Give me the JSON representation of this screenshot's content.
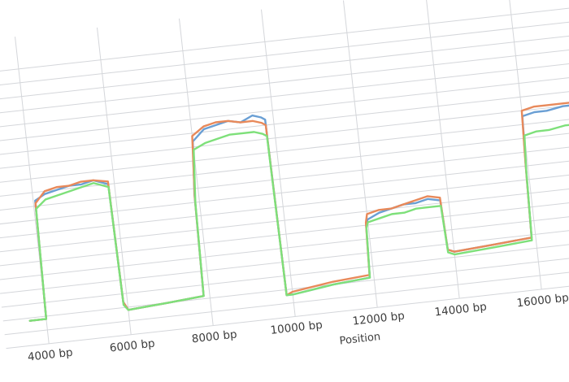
{
  "chart_data": {
    "type": "line",
    "xlabel": "Position",
    "x_ticks": [
      4000,
      6000,
      8000,
      10000,
      12000,
      14000,
      16000
    ],
    "x_tick_labels": [
      "4000 bp",
      "6000 bp",
      "8000 bp",
      "10000 bp",
      "12000 bp",
      "14000 bp",
      "16000 bp"
    ],
    "x_unit": "bp",
    "xlim": [
      3600,
      17200
    ],
    "ylim": [
      0,
      100
    ],
    "grid": true,
    "legend": "none",
    "series": [
      {
        "color": "#6a9fd4",
        "x": [
          3600,
          4000,
          4050,
          4300,
          4600,
          4900,
          5200,
          5500,
          5850,
          5900,
          6000,
          7000,
          7850,
          7900,
          8000,
          8300,
          8600,
          8900,
          9200,
          9500,
          9700,
          9800,
          9850,
          10000,
          11000,
          11900,
          11950,
          12000,
          12300,
          12600,
          12900,
          13200,
          13500,
          13800,
          13850,
          14000,
          15000,
          15900,
          15950,
          16000,
          16300,
          16600,
          17000,
          17200
        ],
        "y": [
          9,
          9,
          52,
          54,
          55,
          56,
          56,
          57,
          55,
          12,
          9,
          10,
          11,
          48,
          67,
          71,
          72,
          73,
          72,
          74,
          73,
          72,
          8,
          8,
          10,
          11,
          30,
          32,
          34,
          35,
          36,
          36,
          37,
          36,
          18,
          17,
          18,
          19,
          45,
          63,
          64,
          64,
          65,
          65
        ]
      },
      {
        "color": "#e8895a",
        "x": [
          3600,
          4000,
          4050,
          4300,
          4600,
          4900,
          5200,
          5500,
          5850,
          5900,
          6000,
          7000,
          7850,
          7900,
          8000,
          8300,
          8600,
          8900,
          9200,
          9500,
          9700,
          9800,
          9850,
          10000,
          11000,
          11900,
          11950,
          12000,
          12300,
          12600,
          12900,
          13200,
          13500,
          13800,
          13850,
          14000,
          15000,
          15900,
          15950,
          16000,
          16300,
          16600,
          17000,
          17200
        ],
        "y": [
          9,
          9,
          51,
          55,
          56,
          56,
          57,
          57,
          56,
          12,
          9,
          10,
          11,
          47,
          69,
          72,
          73,
          73,
          72,
          72,
          71,
          70,
          8,
          9,
          11,
          12,
          31,
          34,
          35,
          35,
          36,
          37,
          38,
          37,
          18,
          17,
          18,
          19,
          46,
          65,
          66,
          66,
          66,
          66
        ]
      },
      {
        "color": "#7ee07a",
        "x": [
          3600,
          4000,
          4050,
          4300,
          4600,
          4900,
          5200,
          5500,
          5850,
          5900,
          6000,
          7000,
          7850,
          7900,
          8000,
          8300,
          8600,
          8900,
          9200,
          9500,
          9700,
          9800,
          9850,
          10000,
          11000,
          11900,
          11950,
          12000,
          12300,
          12600,
          12900,
          13200,
          13500,
          13800,
          13850,
          14000,
          15000,
          15900,
          15950,
          16000,
          16300,
          16600,
          17000,
          17200
        ],
        "y": [
          9,
          9,
          49,
          52,
          53,
          54,
          55,
          56,
          54,
          11,
          9,
          10,
          11,
          45,
          64,
          66,
          67,
          68,
          68,
          68,
          67,
          66,
          8,
          8,
          10,
          11,
          29,
          31,
          32,
          33,
          33,
          34,
          34,
          34,
          17,
          16,
          17,
          18,
          44,
          56,
          57,
          57,
          58,
          58
        ]
      }
    ]
  }
}
